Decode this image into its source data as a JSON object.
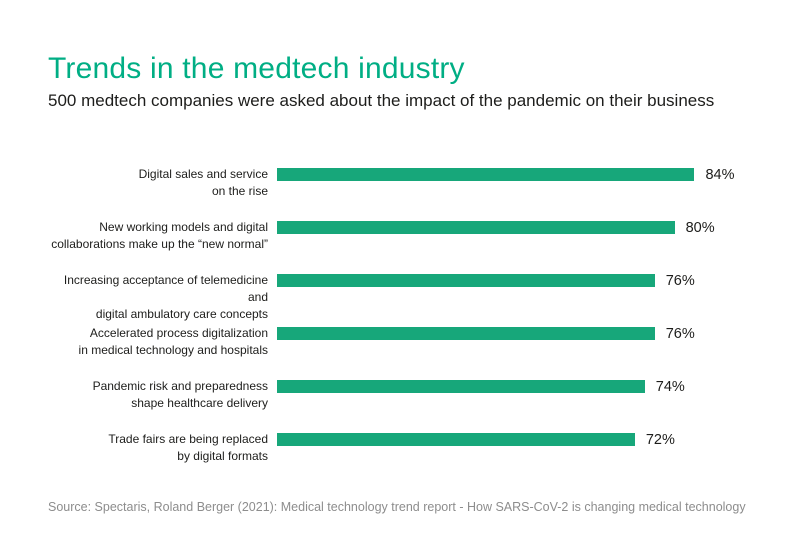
{
  "header": {
    "title": "Trends in the medtech industry",
    "subtitle": "500 medtech companies were asked about the impact of the pandemic on their business"
  },
  "footer": {
    "source": "Source: Spectaris, Roland Berger (2021): Medical technology trend report - How SARS-CoV-2 is changing medical technology"
  },
  "colors": {
    "title_green": "#00ae84",
    "bar_green": "#17a77a",
    "text_dark": "#1d1d1b",
    "source_gray": "#8d8d8d"
  },
  "chart_data": {
    "type": "bar",
    "orientation": "horizontal",
    "title": "Trends in the medtech industry",
    "subtitle": "500 medtech companies were asked about the impact of the pandemic on their business",
    "xlabel": "",
    "ylabel": "",
    "xlim": [
      0,
      100
    ],
    "unit": "%",
    "grid": false,
    "legend": false,
    "bar_color": "#17a77a",
    "categories": [
      "Digital sales and service on the rise",
      "New working models and digital collaborations make up the “new normal”",
      "Increasing acceptance of telemedicine and digital ambulatory care concepts",
      "Accelerated process digitalization in medical technology and hospitals",
      "Pandemic risk and preparedness shape healthcare delivery",
      "Trade fairs are being replaced by digital formats"
    ],
    "category_lines": [
      [
        "Digital sales and service",
        "on the rise"
      ],
      [
        "New working models and digital",
        "collaborations make up the “new normal”"
      ],
      [
        "Increasing acceptance of telemedicine and",
        "digital ambulatory care concepts"
      ],
      [
        "Accelerated process digitalization",
        "in medical technology and hospitals"
      ],
      [
        "Pandemic risk and preparedness",
        "shape healthcare delivery"
      ],
      [
        "Trade fairs are being replaced",
        "by digital formats"
      ]
    ],
    "values": [
      84,
      80,
      76,
      76,
      74,
      72
    ],
    "value_labels": [
      "84%",
      "80%",
      "76%",
      "76%",
      "74%",
      "72%"
    ]
  }
}
